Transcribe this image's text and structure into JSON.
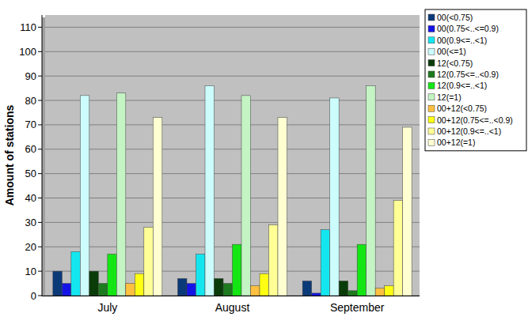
{
  "chart_data": {
    "type": "bar",
    "y_label": "Amount of stations",
    "categories": [
      "July",
      "August",
      "September"
    ],
    "ylim": [
      0,
      115
    ],
    "yticks": [
      0,
      10,
      20,
      30,
      40,
      50,
      60,
      70,
      80,
      90,
      100,
      110
    ],
    "grid": true,
    "legend": "top-right",
    "series": [
      {
        "name": "00(<0.75)",
        "color": "#0b3a78",
        "values": [
          10,
          7,
          6
        ]
      },
      {
        "name": "00(0.75<..<=0.9)",
        "color": "#1414e6",
        "values": [
          5,
          5,
          1
        ]
      },
      {
        "name": "00(0.9<=..<1)",
        "color": "#14e6f0",
        "values": [
          18,
          17,
          27
        ]
      },
      {
        "name": "00(<=1)",
        "color": "#ccfcfc",
        "values": [
          82,
          86,
          81
        ]
      },
      {
        "name": "12(<0.75)",
        "color": "#0a3c0a",
        "values": [
          10,
          7,
          6
        ]
      },
      {
        "name": "12(0.75<=..<0.9)",
        "color": "#1e7a1e",
        "values": [
          5,
          5,
          2
        ]
      },
      {
        "name": "12(0.9<=..<1)",
        "color": "#14e614",
        "values": [
          17,
          21,
          21
        ]
      },
      {
        "name": "12(=1)",
        "color": "#c4f4c4",
        "values": [
          83,
          82,
          86
        ]
      },
      {
        "name": "00+12(<0.75)",
        "color": "#ffc040",
        "values": [
          5,
          4,
          3
        ]
      },
      {
        "name": "00+12(0.75<=..<0.9)",
        "color": "#ffff14",
        "values": [
          9,
          9,
          4
        ]
      },
      {
        "name": "00+12(0.9<=..<1)",
        "color": "#ffff96",
        "values": [
          28,
          29,
          39
        ]
      },
      {
        "name": "00+12(=1)",
        "color": "#ffffd2",
        "values": [
          73,
          73,
          69
        ]
      }
    ]
  }
}
